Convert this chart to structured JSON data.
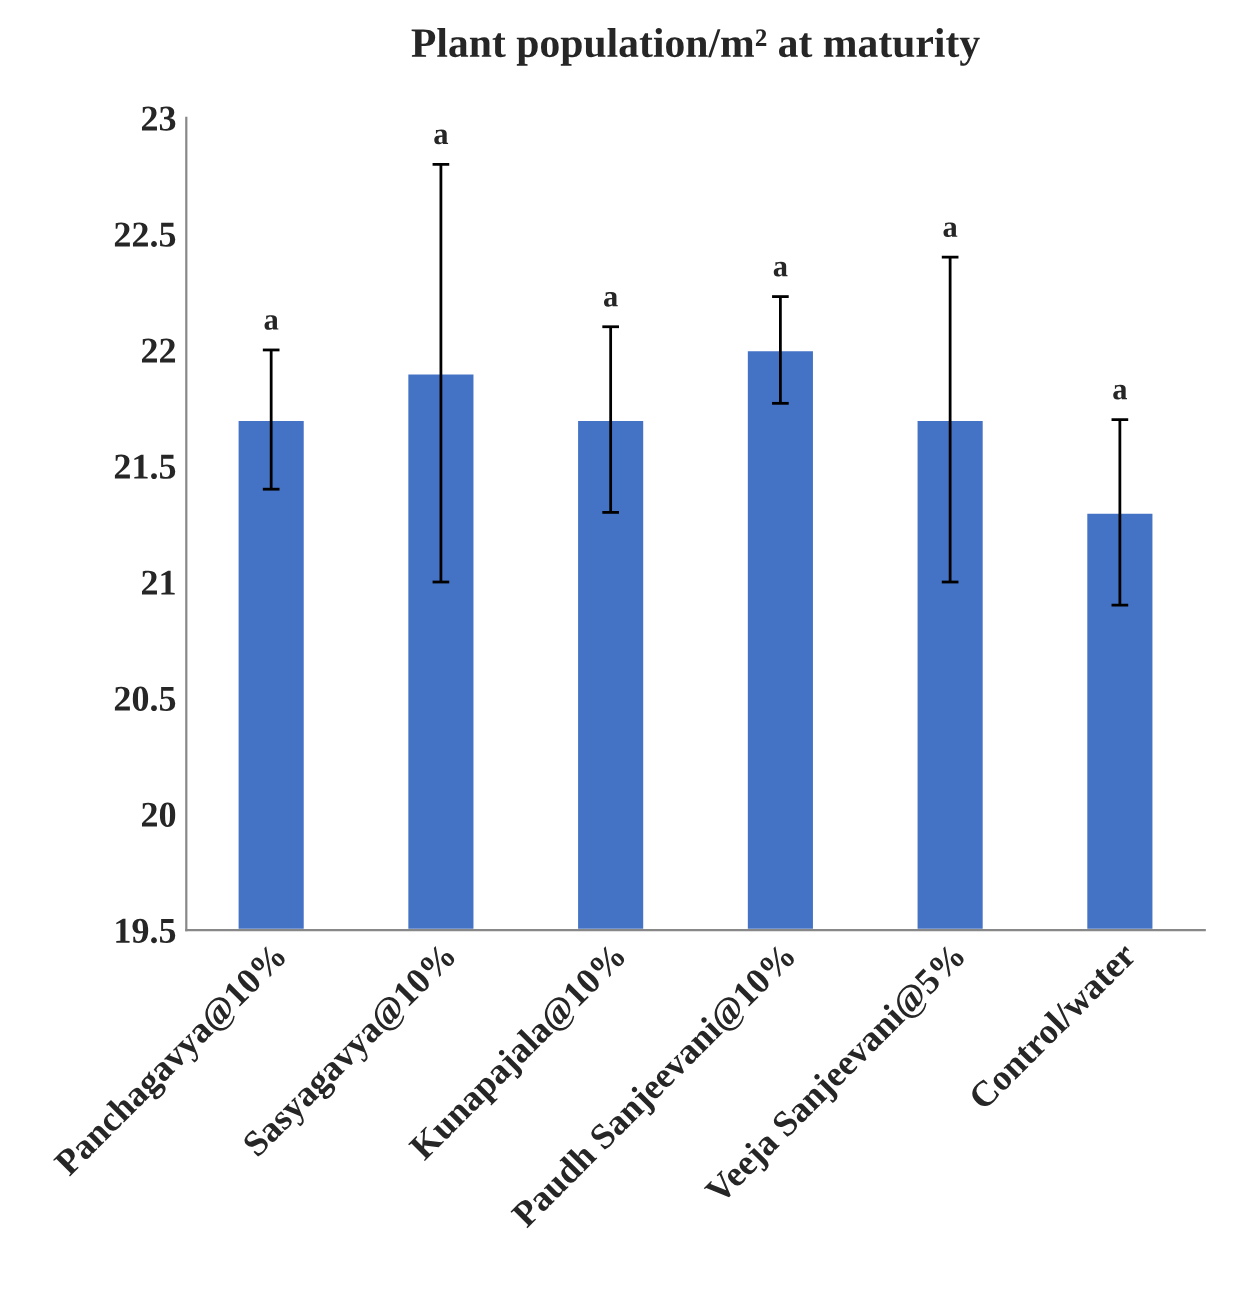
{
  "chart_data": {
    "type": "bar",
    "title": "Plant population/m² at maturity",
    "categories": [
      "Panchagavya@10%",
      "Sasyagavya@10%",
      "Kunapajala@10%",
      "Paudh Sanjeevani@10%",
      "Veeja Sanjeevani@5%",
      "Control/water"
    ],
    "values": [
      21.7,
      21.9,
      21.7,
      22.0,
      21.7,
      21.3
    ],
    "errors": [
      0.3,
      0.9,
      0.4,
      0.23,
      0.7,
      0.4
    ],
    "color": "#4472c4",
    "ylim": [
      19.5,
      23
    ],
    "yticks": [
      19.5,
      20,
      20.5,
      21,
      21.5,
      22,
      22.5,
      23
    ],
    "annotations": [
      {
        "text": "a",
        "x": "Panchagavya@10%",
        "y": 22.0
      },
      {
        "text": "a",
        "x": "Sasyagavya@10%",
        "y": 22.8
      },
      {
        "text": "a",
        "x": "Kunapajala@10%",
        "y": 22.1
      },
      {
        "text": "a",
        "x": "Paudh Sanjeevani@10%",
        "y": 22.23
      },
      {
        "text": "a",
        "x": "Veeja Sanjeevani@5%",
        "y": 22.4
      },
      {
        "text": "a",
        "x": "Control/water",
        "y": 21.7
      }
    ]
  }
}
